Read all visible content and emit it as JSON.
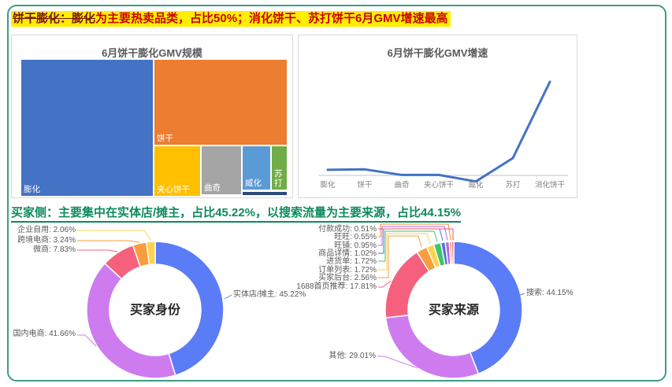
{
  "colors": {
    "card_border": "#3d9c86",
    "highlight_bg": "#ffee00",
    "headline1_lead": "#7a1515",
    "headline1_rest": "#cc0000",
    "headline2_green": "#0d8a5c",
    "panel_border": "#d9d9d9",
    "panel_title_gray": "#595959",
    "axis_gray": "#d9d9d9",
    "line_blue": "#4472c4"
  },
  "headline1": {
    "lead": "饼干膨化：膨化",
    "rest": "为主要热卖品类，占比50%；消化饼干、苏打饼干6月GMV增速最高"
  },
  "headline2": {
    "text": "买家侧：主要集中在实体店/摊主，占比45.22%，以搜索流量为主要来源，占比44.15%"
  },
  "chart_data": [
    {
      "id": "treemap-gmv-scale",
      "type": "treemap",
      "title": "6月饼干膨化GMV规模",
      "items": [
        {
          "name": "膨化",
          "share_pct_est": 50,
          "color": "#4472c4"
        },
        {
          "name": "饼干",
          "share_pct_est": 30,
          "color": "#ed7d31"
        },
        {
          "name": "夹心饼干",
          "share_pct_est": 7,
          "color": "#ffc000"
        },
        {
          "name": "曲奇",
          "share_pct_est": 6,
          "color": "#a5a5a5"
        },
        {
          "name": "威化",
          "share_pct_est": 4,
          "color": "#5b9bd5"
        },
        {
          "name": "苏打",
          "share_pct_est": 2.3,
          "color": "#70ad47"
        },
        {
          "name": "",
          "share_pct_est": 0.7,
          "color": "#2a4b7c"
        }
      ]
    },
    {
      "id": "line-gmv-growth",
      "type": "line",
      "title": "6月饼干膨化GMV增速",
      "categories": [
        "膨化",
        "饼干",
        "曲奇",
        "夹心饼干",
        "威化",
        "苏打",
        "消化饼干"
      ],
      "values_relative_to_peak": [
        0.06,
        0.065,
        0.005,
        0.005,
        -0.065,
        0.185,
        1.0
      ],
      "line_color": "#4472c4",
      "xlabel": "",
      "ylabel": "",
      "y_axis_ticks": "none shown",
      "grid": "off"
    },
    {
      "id": "donut-buyer-identity",
      "type": "pie",
      "title": "买家身份",
      "legend_position": "callout-labels",
      "slices": [
        {
          "name": "实体店/摊主",
          "value_pct": 45.22,
          "color": "#5b7cf7"
        },
        {
          "name": "国内电商",
          "value_pct": 41.66,
          "color": "#ce7bf0"
        },
        {
          "name": "微商",
          "value_pct": 7.83,
          "color": "#f5617d"
        },
        {
          "name": "跨境电商",
          "value_pct": 3.24,
          "color": "#fa9d3c"
        },
        {
          "name": "企业自用",
          "value_pct": 2.06,
          "color": "#ffd24d"
        }
      ]
    },
    {
      "id": "donut-buyer-source",
      "type": "pie",
      "title": "买家来源",
      "legend_position": "callout-labels",
      "slices": [
        {
          "name": "搜索",
          "value_pct": 44.15,
          "color": "#5b7cf7"
        },
        {
          "name": "其他",
          "value_pct": 29.01,
          "color": "#ce7bf0"
        },
        {
          "name": "1688首页推荐",
          "value_pct": 17.81,
          "color": "#f5617d"
        },
        {
          "name": "买家后台",
          "value_pct": 2.56,
          "color": "#fa9d3c"
        },
        {
          "name": "订单列表",
          "value_pct": 1.72,
          "color": "#ffd24d"
        },
        {
          "name": "进货单",
          "value_pct": 1.72,
          "color": "#3fc567"
        },
        {
          "name": "商品详情",
          "value_pct": 1.02,
          "color": "#4f6fe8"
        },
        {
          "name": "旺铺",
          "value_pct": 0.95,
          "color": "#b06be8"
        },
        {
          "name": "旺旺",
          "value_pct": 0.55,
          "color": "#fa8c3c"
        },
        {
          "name": "付款成功",
          "value_pct": 0.51,
          "color": "#f0506e"
        }
      ]
    }
  ]
}
